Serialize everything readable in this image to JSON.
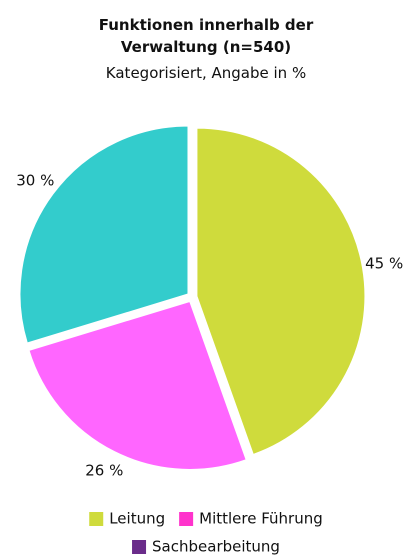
{
  "chart_data": {
    "type": "pie",
    "title": "Funktionen innerhalb der Verwaltung (n=540)",
    "subtitle": "Kategorisiert, Angabe in %",
    "categories": [
      "Leitung",
      "Mittlere Führung",
      "Sachbearbeitung"
    ],
    "values": [
      45,
      26,
      30
    ],
    "value_labels": [
      "45 %",
      "26 %",
      "30 %"
    ],
    "colors": [
      "#cfdb3c",
      "#ff66ff",
      "#33cccc"
    ],
    "legend_colors": [
      "#cfdb3c",
      "#ff33cc",
      "#6a2c8a"
    ],
    "legend": "bottom"
  }
}
